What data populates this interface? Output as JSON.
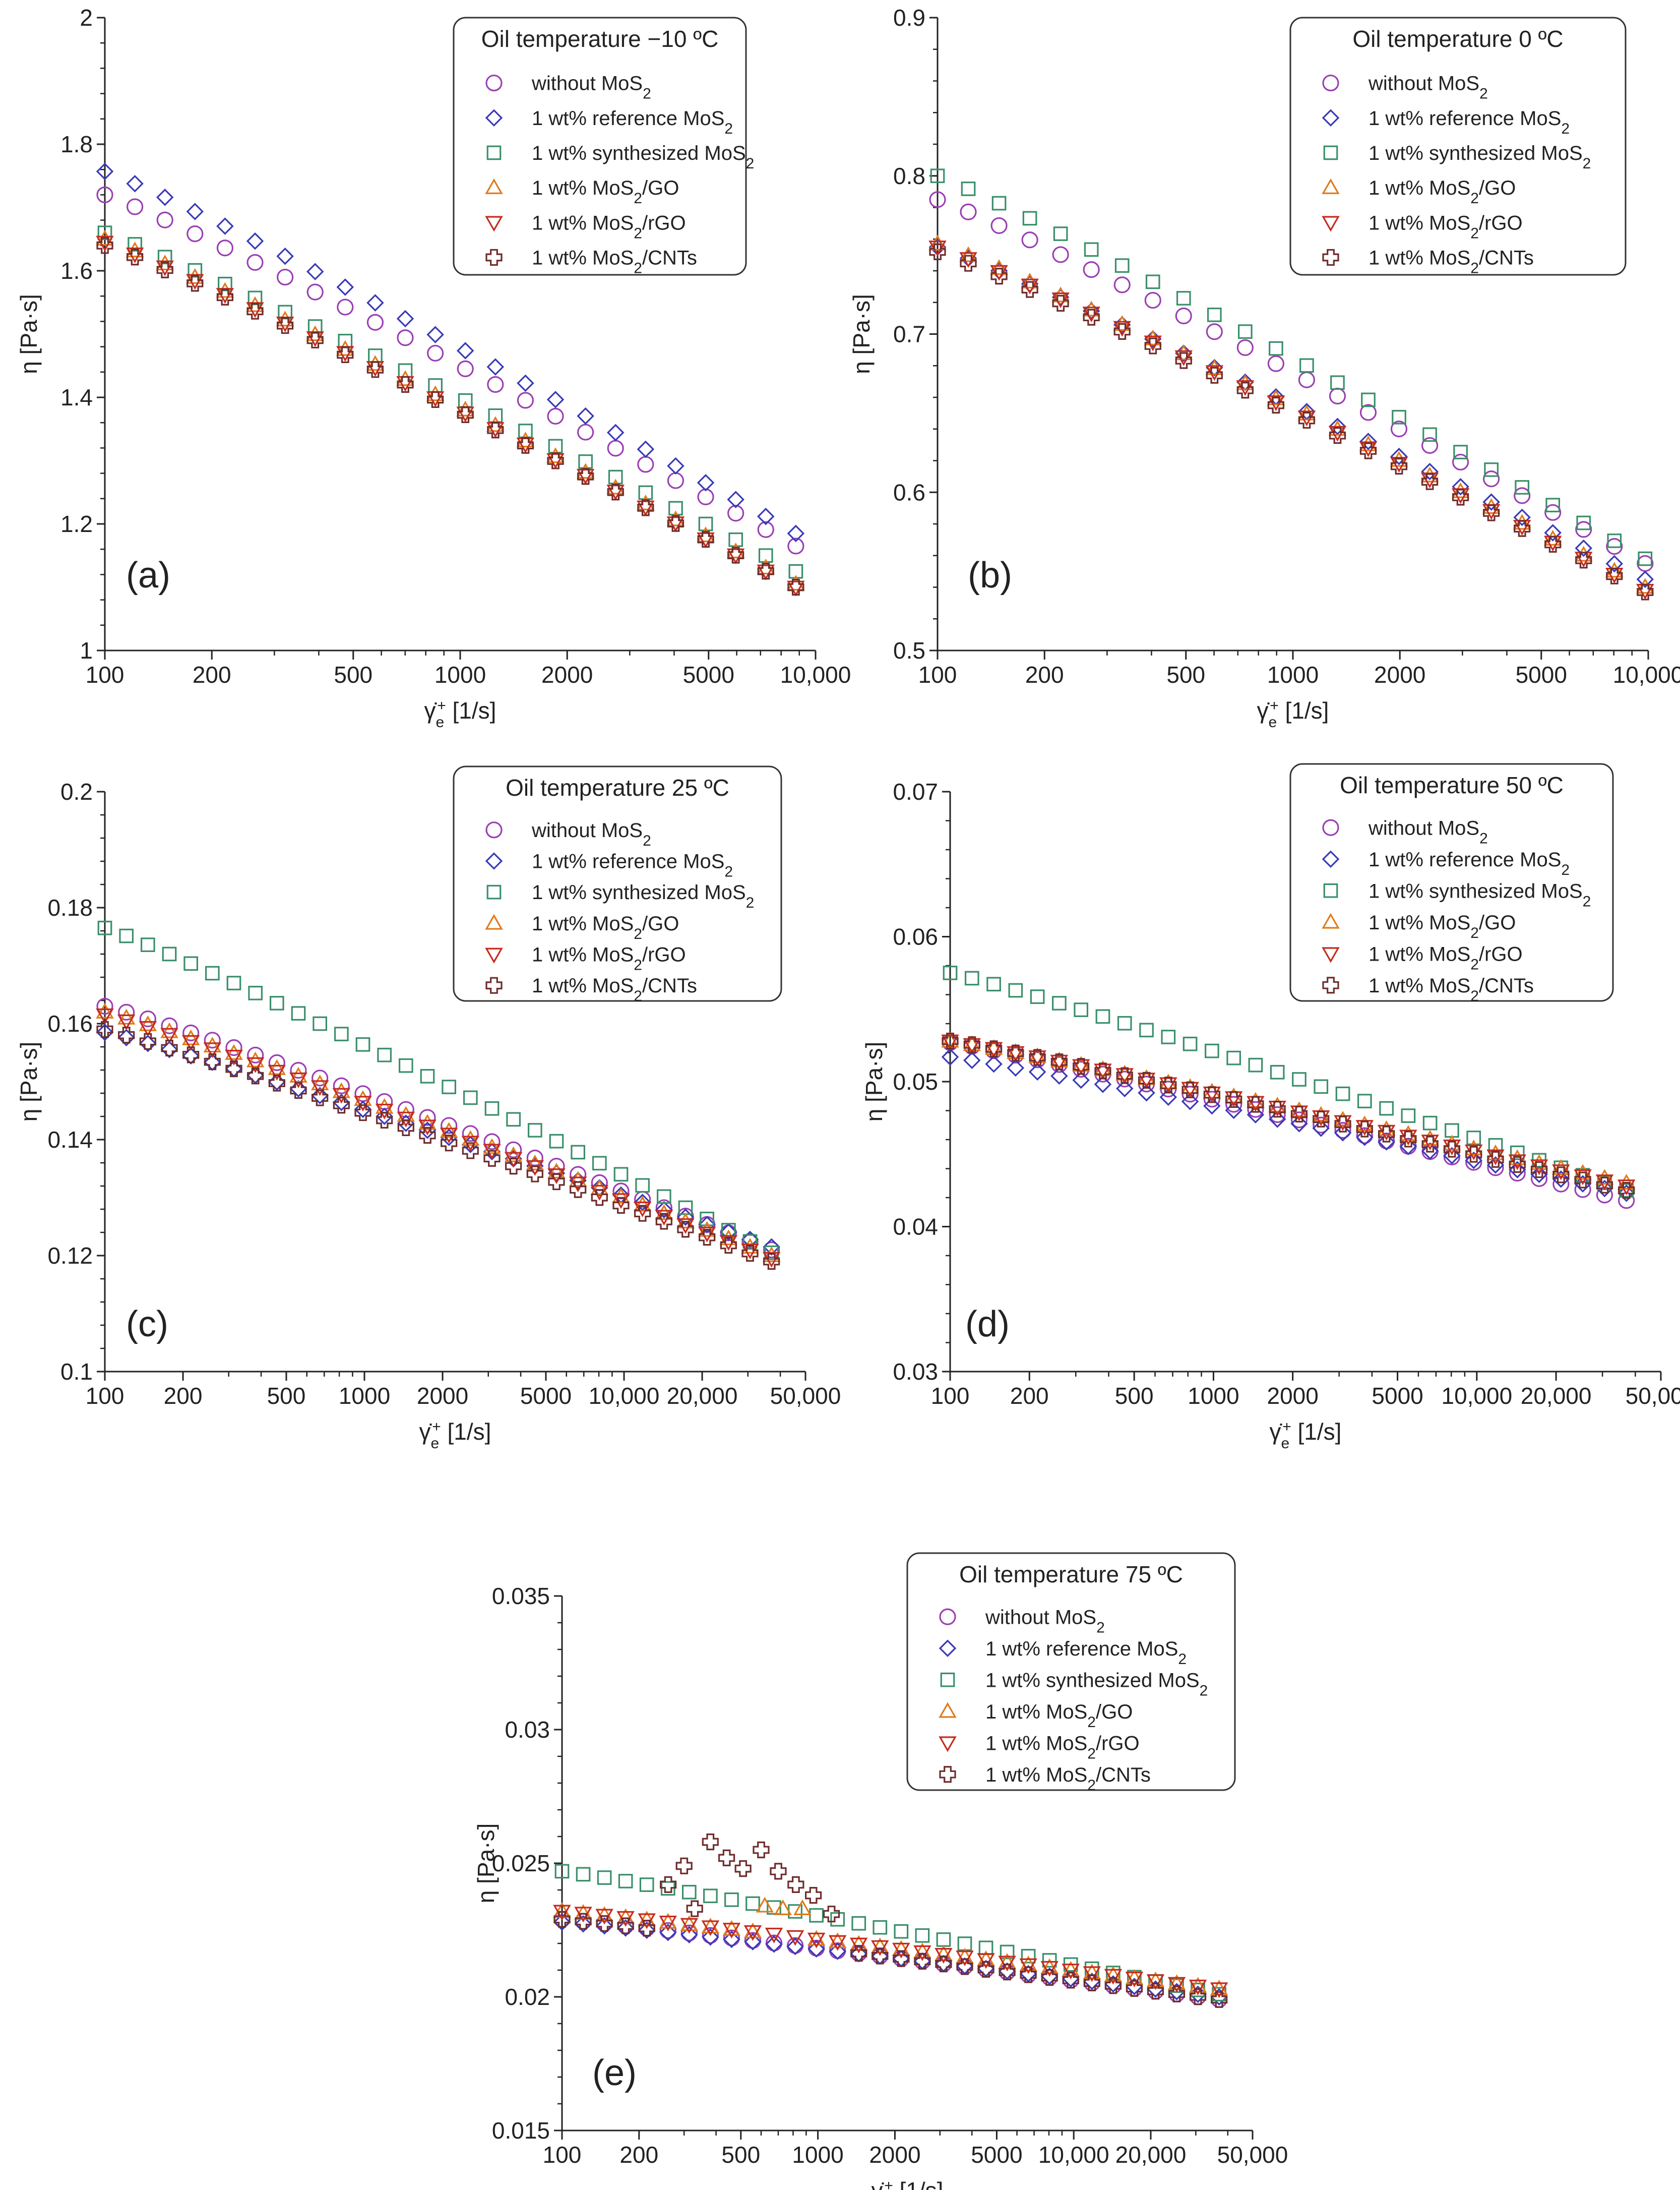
{
  "colors": {
    "without": "#9b3fb3",
    "reference": "#3a3ab8",
    "synthesized": "#3a8f6a",
    "go": "#e07b1a",
    "rgo": "#c62b1e",
    "cnts": "#6e2d2d",
    "axis": "#222222"
  },
  "legend_labels": {
    "without": "without MoS",
    "reference": "1 wt% reference MoS",
    "synthesized": "1 wt% synthesized MoS",
    "go_pre": "1 wt% MoS",
    "go_post": "/GO",
    "rgo_pre": "1 wt% MoS",
    "rgo_post": "/rGO",
    "cnts_pre": "1 wt% MoS",
    "cnts_post": "/CNTs",
    "subscript": "2"
  },
  "axis_titles": {
    "y": "η [Pa·s]",
    "x_symbol": "γ̇",
    "x_sub": "e",
    "x_sup": "+",
    "x_unit": " [1/s]"
  },
  "chart_data": [
    {
      "id": "a",
      "type": "scatter",
      "panel_label": "(a)",
      "title": "Oil temperature −10 ºC",
      "xscale": "log",
      "xlim": [
        100,
        10000
      ],
      "ylim": [
        1,
        2
      ],
      "xticks": [
        100,
        200,
        500,
        1000,
        2000,
        5000,
        10000
      ],
      "xtick_labels": [
        "100",
        "200",
        "500",
        "1000",
        "2000",
        "5000",
        "10,000"
      ],
      "yticks": [
        1,
        1.2,
        1.4,
        1.6,
        1.8,
        2
      ],
      "ytick_labels": [
        "1",
        "1.2",
        "1.4",
        "1.6",
        "1.8",
        "2"
      ],
      "x_range": [
        100,
        8800
      ],
      "n_points": 24,
      "series": [
        {
          "key": "without",
          "y_start": 1.72,
          "y_end": 1.165
        },
        {
          "key": "reference",
          "y_start": 1.757,
          "y_end": 1.185
        },
        {
          "key": "synthesized",
          "y_start": 1.66,
          "y_end": 1.125
        },
        {
          "key": "go",
          "y_start": 1.65,
          "y_end": 1.105
        },
        {
          "key": "rgo",
          "y_start": 1.645,
          "y_end": 1.1
        },
        {
          "key": "cnts",
          "y_start": 1.64,
          "y_end": 1.1
        }
      ]
    },
    {
      "id": "b",
      "type": "scatter",
      "panel_label": "(b)",
      "title": "Oil temperature 0 ºC",
      "xscale": "log",
      "xlim": [
        100,
        10000
      ],
      "ylim": [
        0.5,
        0.9
      ],
      "xticks": [
        100,
        200,
        500,
        1000,
        2000,
        5000,
        10000
      ],
      "xtick_labels": [
        "100",
        "200",
        "500",
        "1000",
        "2000",
        "5000",
        "10,000"
      ],
      "yticks": [
        0.5,
        0.6,
        0.7,
        0.8,
        0.9
      ],
      "ytick_labels": [
        "0.5",
        "0.6",
        "0.7",
        "0.8",
        "0.9"
      ],
      "x_range": [
        100,
        9800
      ],
      "n_points": 24,
      "series": [
        {
          "key": "without",
          "y_start": 0.785,
          "y_end": 0.555
        },
        {
          "key": "reference",
          "y_start": 0.755,
          "y_end": 0.545
        },
        {
          "key": "synthesized",
          "y_start": 0.8,
          "y_end": 0.558
        },
        {
          "key": "go",
          "y_start": 0.757,
          "y_end": 0.54
        },
        {
          "key": "rgo",
          "y_start": 0.755,
          "y_end": 0.538
        },
        {
          "key": "cnts",
          "y_start": 0.752,
          "y_end": 0.537
        }
      ]
    },
    {
      "id": "c",
      "type": "scatter",
      "panel_label": "(c)",
      "title": "Oil temperature 25 ºC",
      "xscale": "log",
      "xlim": [
        100,
        50000
      ],
      "ylim": [
        0.1,
        0.2
      ],
      "xticks": [
        100,
        200,
        500,
        1000,
        2000,
        5000,
        10000,
        20000,
        50000
      ],
      "xtick_labels": [
        "100",
        "200",
        "500",
        "1000",
        "2000",
        "5000",
        "10,000",
        "20,000",
        "50,000"
      ],
      "yticks": [
        0.1,
        0.12,
        0.14,
        0.16,
        0.18,
        0.2
      ],
      "ytick_labels": [
        "0.1",
        "0.12",
        "0.14",
        "0.16",
        "0.18",
        "0.2"
      ],
      "x_range": [
        100,
        37000
      ],
      "n_points": 32,
      "series": [
        {
          "key": "without",
          "y_start": 0.163,
          "y_end": 0.121
        },
        {
          "key": "reference",
          "y_start": 0.1585,
          "y_end": 0.1215
        },
        {
          "key": "synthesized",
          "y_start": 0.1765,
          "y_end": 0.1205
        },
        {
          "key": "go",
          "y_start": 0.162,
          "y_end": 0.12
        },
        {
          "key": "rgo",
          "y_start": 0.1615,
          "y_end": 0.1195
        },
        {
          "key": "cnts",
          "y_start": 0.159,
          "y_end": 0.119
        }
      ]
    },
    {
      "id": "d",
      "type": "scatter",
      "panel_label": "(d)",
      "title": "Oil temperature 50 ºC",
      "xscale": "log",
      "xlim": [
        100,
        50000
      ],
      "ylim": [
        0.03,
        0.07
      ],
      "xticks": [
        100,
        200,
        500,
        1000,
        2000,
        5000,
        10000,
        20000,
        50000
      ],
      "xtick_labels": [
        "100",
        "200",
        "500",
        "1000",
        "2000",
        "5000",
        "10,000",
        "20,000",
        "50,000"
      ],
      "yticks": [
        0.03,
        0.04,
        0.05,
        0.06,
        0.07
      ],
      "ytick_labels": [
        "0.03",
        "0.04",
        "0.05",
        "0.06",
        "0.07"
      ],
      "x_range": [
        100,
        37000
      ],
      "n_points": 32,
      "series": [
        {
          "key": "without",
          "y_start": 0.0527,
          "y_end": 0.0418
        },
        {
          "key": "reference",
          "y_start": 0.0517,
          "y_end": 0.0423
        },
        {
          "key": "synthesized",
          "y_start": 0.0575,
          "y_end": 0.0425
        },
        {
          "key": "go",
          "y_start": 0.0528,
          "y_end": 0.043
        },
        {
          "key": "rgo",
          "y_start": 0.0528,
          "y_end": 0.0428
        },
        {
          "key": "cnts",
          "y_start": 0.0528,
          "y_end": 0.0425
        }
      ]
    },
    {
      "id": "e",
      "type": "scatter",
      "panel_label": "(e)",
      "title": "Oil temperature 75 ºC",
      "xscale": "log",
      "xlim": [
        100,
        50000
      ],
      "ylim": [
        0.015,
        0.035
      ],
      "xticks": [
        100,
        200,
        500,
        1000,
        2000,
        5000,
        10000,
        20000,
        50000
      ],
      "xtick_labels": [
        "100",
        "200",
        "500",
        "1000",
        "2000",
        "5000",
        "10,000",
        "20,000",
        "50,000"
      ],
      "yticks": [
        0.015,
        0.02,
        0.025,
        0.03,
        0.035
      ],
      "ytick_labels": [
        "0.015",
        "0.02",
        "0.025",
        "0.03",
        "0.035"
      ],
      "x_range": [
        100,
        37000
      ],
      "n_points": 32,
      "series": [
        {
          "key": "without",
          "y_start": 0.0229,
          "y_end": 0.0199
        },
        {
          "key": "reference",
          "y_start": 0.0228,
          "y_end": 0.02
        },
        {
          "key": "synthesized",
          "y_start": 0.0247,
          "y_end": 0.0201
        },
        {
          "key": "go",
          "y_start": 0.0232,
          "y_end": 0.0203
        },
        {
          "key": "rgo",
          "y_start": 0.0232,
          "y_end": 0.0203
        },
        {
          "key": "cnts",
          "y_start": 0.0229,
          "y_end": 0.0199
        }
      ],
      "cnts_bump": [
        {
          "x": 260,
          "y": 0.0242
        },
        {
          "x": 300,
          "y": 0.0249
        },
        {
          "x": 330,
          "y": 0.0233
        },
        {
          "x": 380,
          "y": 0.0258
        },
        {
          "x": 440,
          "y": 0.0252
        },
        {
          "x": 510,
          "y": 0.0248
        },
        {
          "x": 600,
          "y": 0.0255
        },
        {
          "x": 700,
          "y": 0.0247
        },
        {
          "x": 820,
          "y": 0.0242
        },
        {
          "x": 960,
          "y": 0.0238
        },
        {
          "x": 1130,
          "y": 0.0231
        }
      ],
      "go_bump": [
        {
          "x": 620,
          "y": 0.0234
        },
        {
          "x": 730,
          "y": 0.0233
        },
        {
          "x": 870,
          "y": 0.0233
        }
      ]
    }
  ]
}
